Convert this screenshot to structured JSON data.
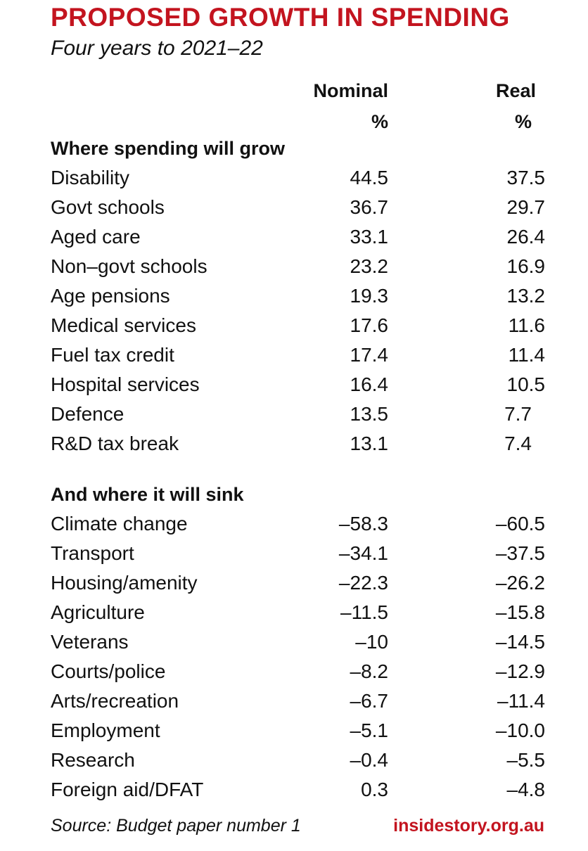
{
  "title": "PROPOSED GROWTH IN SPENDING",
  "subtitle": "Four years to 2021–22",
  "columns": {
    "nominal": "Nominal",
    "real": "Real",
    "unit": "%"
  },
  "grow": {
    "heading": "Where spending will grow",
    "rows": [
      {
        "label": "Disability",
        "nominal": "44.5",
        "real": "37.5"
      },
      {
        "label": "Govt schools",
        "nominal": "36.7",
        "real": "29.7"
      },
      {
        "label": "Aged care",
        "nominal": "33.1",
        "real": "26.4"
      },
      {
        "label": "Non–govt schools",
        "nominal": "23.2",
        "real": "16.9"
      },
      {
        "label": "Age pensions",
        "nominal": "19.3",
        "real": "13.2"
      },
      {
        "label": "Medical services",
        "nominal": "17.6",
        "real": "11.6"
      },
      {
        "label": "Fuel tax credit",
        "nominal": "17.4",
        "real": "11.4"
      },
      {
        "label": "Hospital services",
        "nominal": "16.4",
        "real": "10.5"
      },
      {
        "label": "Defence",
        "nominal": "13.5",
        "real": "7.7"
      },
      {
        "label": "R&D tax break",
        "nominal": "13.1",
        "real": "7.4"
      }
    ]
  },
  "sink": {
    "heading": "And where it will sink",
    "rows": [
      {
        "label": "Climate change",
        "nominal": "–58.3",
        "real": "–60.5"
      },
      {
        "label": "Transport",
        "nominal": "–34.1",
        "real": "–37.5"
      },
      {
        "label": "Housing/amenity",
        "nominal": "–22.3",
        "real": "–26.2"
      },
      {
        "label": "Agriculture",
        "nominal": "–11.5",
        "real": "–15.8"
      },
      {
        "label": "Veterans",
        "nominal": "–10",
        "real": "–14.5"
      },
      {
        "label": "Courts/police",
        "nominal": "–8.2",
        "real": "–12.9"
      },
      {
        "label": "Arts/recreation",
        "nominal": "–6.7",
        "real": "–11.4"
      },
      {
        "label": "Employment",
        "nominal": "–5.1",
        "real": "–10.0"
      },
      {
        "label": "Research",
        "nominal": "–0.4",
        "real": "–5.5"
      },
      {
        "label": "Foreign aid/DFAT",
        "nominal": "0.3",
        "real": "–4.8"
      }
    ]
  },
  "source": "Source: Budget paper number 1",
  "brand": "insidestory.org.au",
  "colors": {
    "accent": "#c3141f",
    "text": "#111111"
  }
}
